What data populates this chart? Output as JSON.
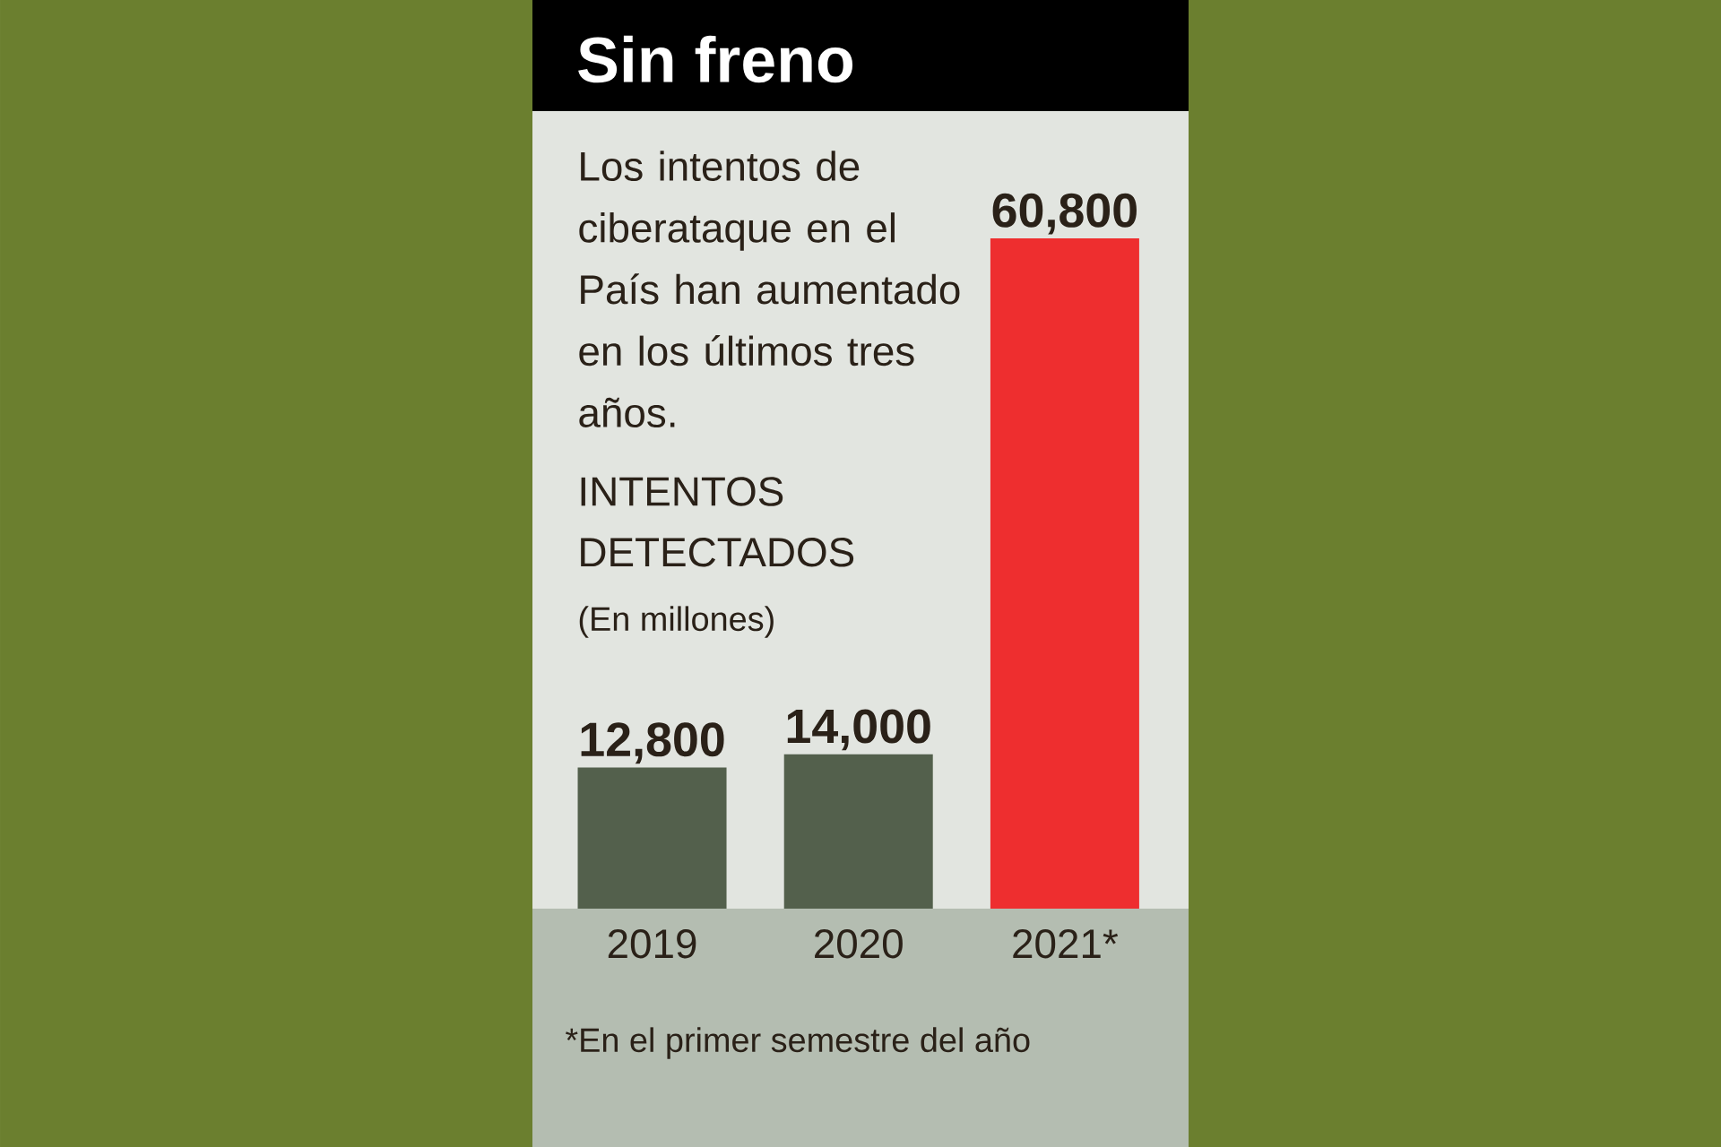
{
  "chart_data": {
    "type": "bar",
    "title": "Sin freno",
    "subtitle": "Los intentos de ciberataque en el País han aumentado en los últimos tres años.",
    "ylabel": "INTENTOS DETECTADOS",
    "annotations": [
      "(En millones)",
      "*En el primer semestre del año"
    ],
    "categories": [
      "2019",
      "2020",
      "2021*"
    ],
    "values": [
      12800,
      14000,
      60800
    ],
    "value_labels": [
      "12,800",
      "14,000",
      "60,800"
    ],
    "colors": [
      "#53604c",
      "#53604c",
      "#ee2e2f"
    ],
    "tick_labels": "x",
    "grid": false
  }
}
